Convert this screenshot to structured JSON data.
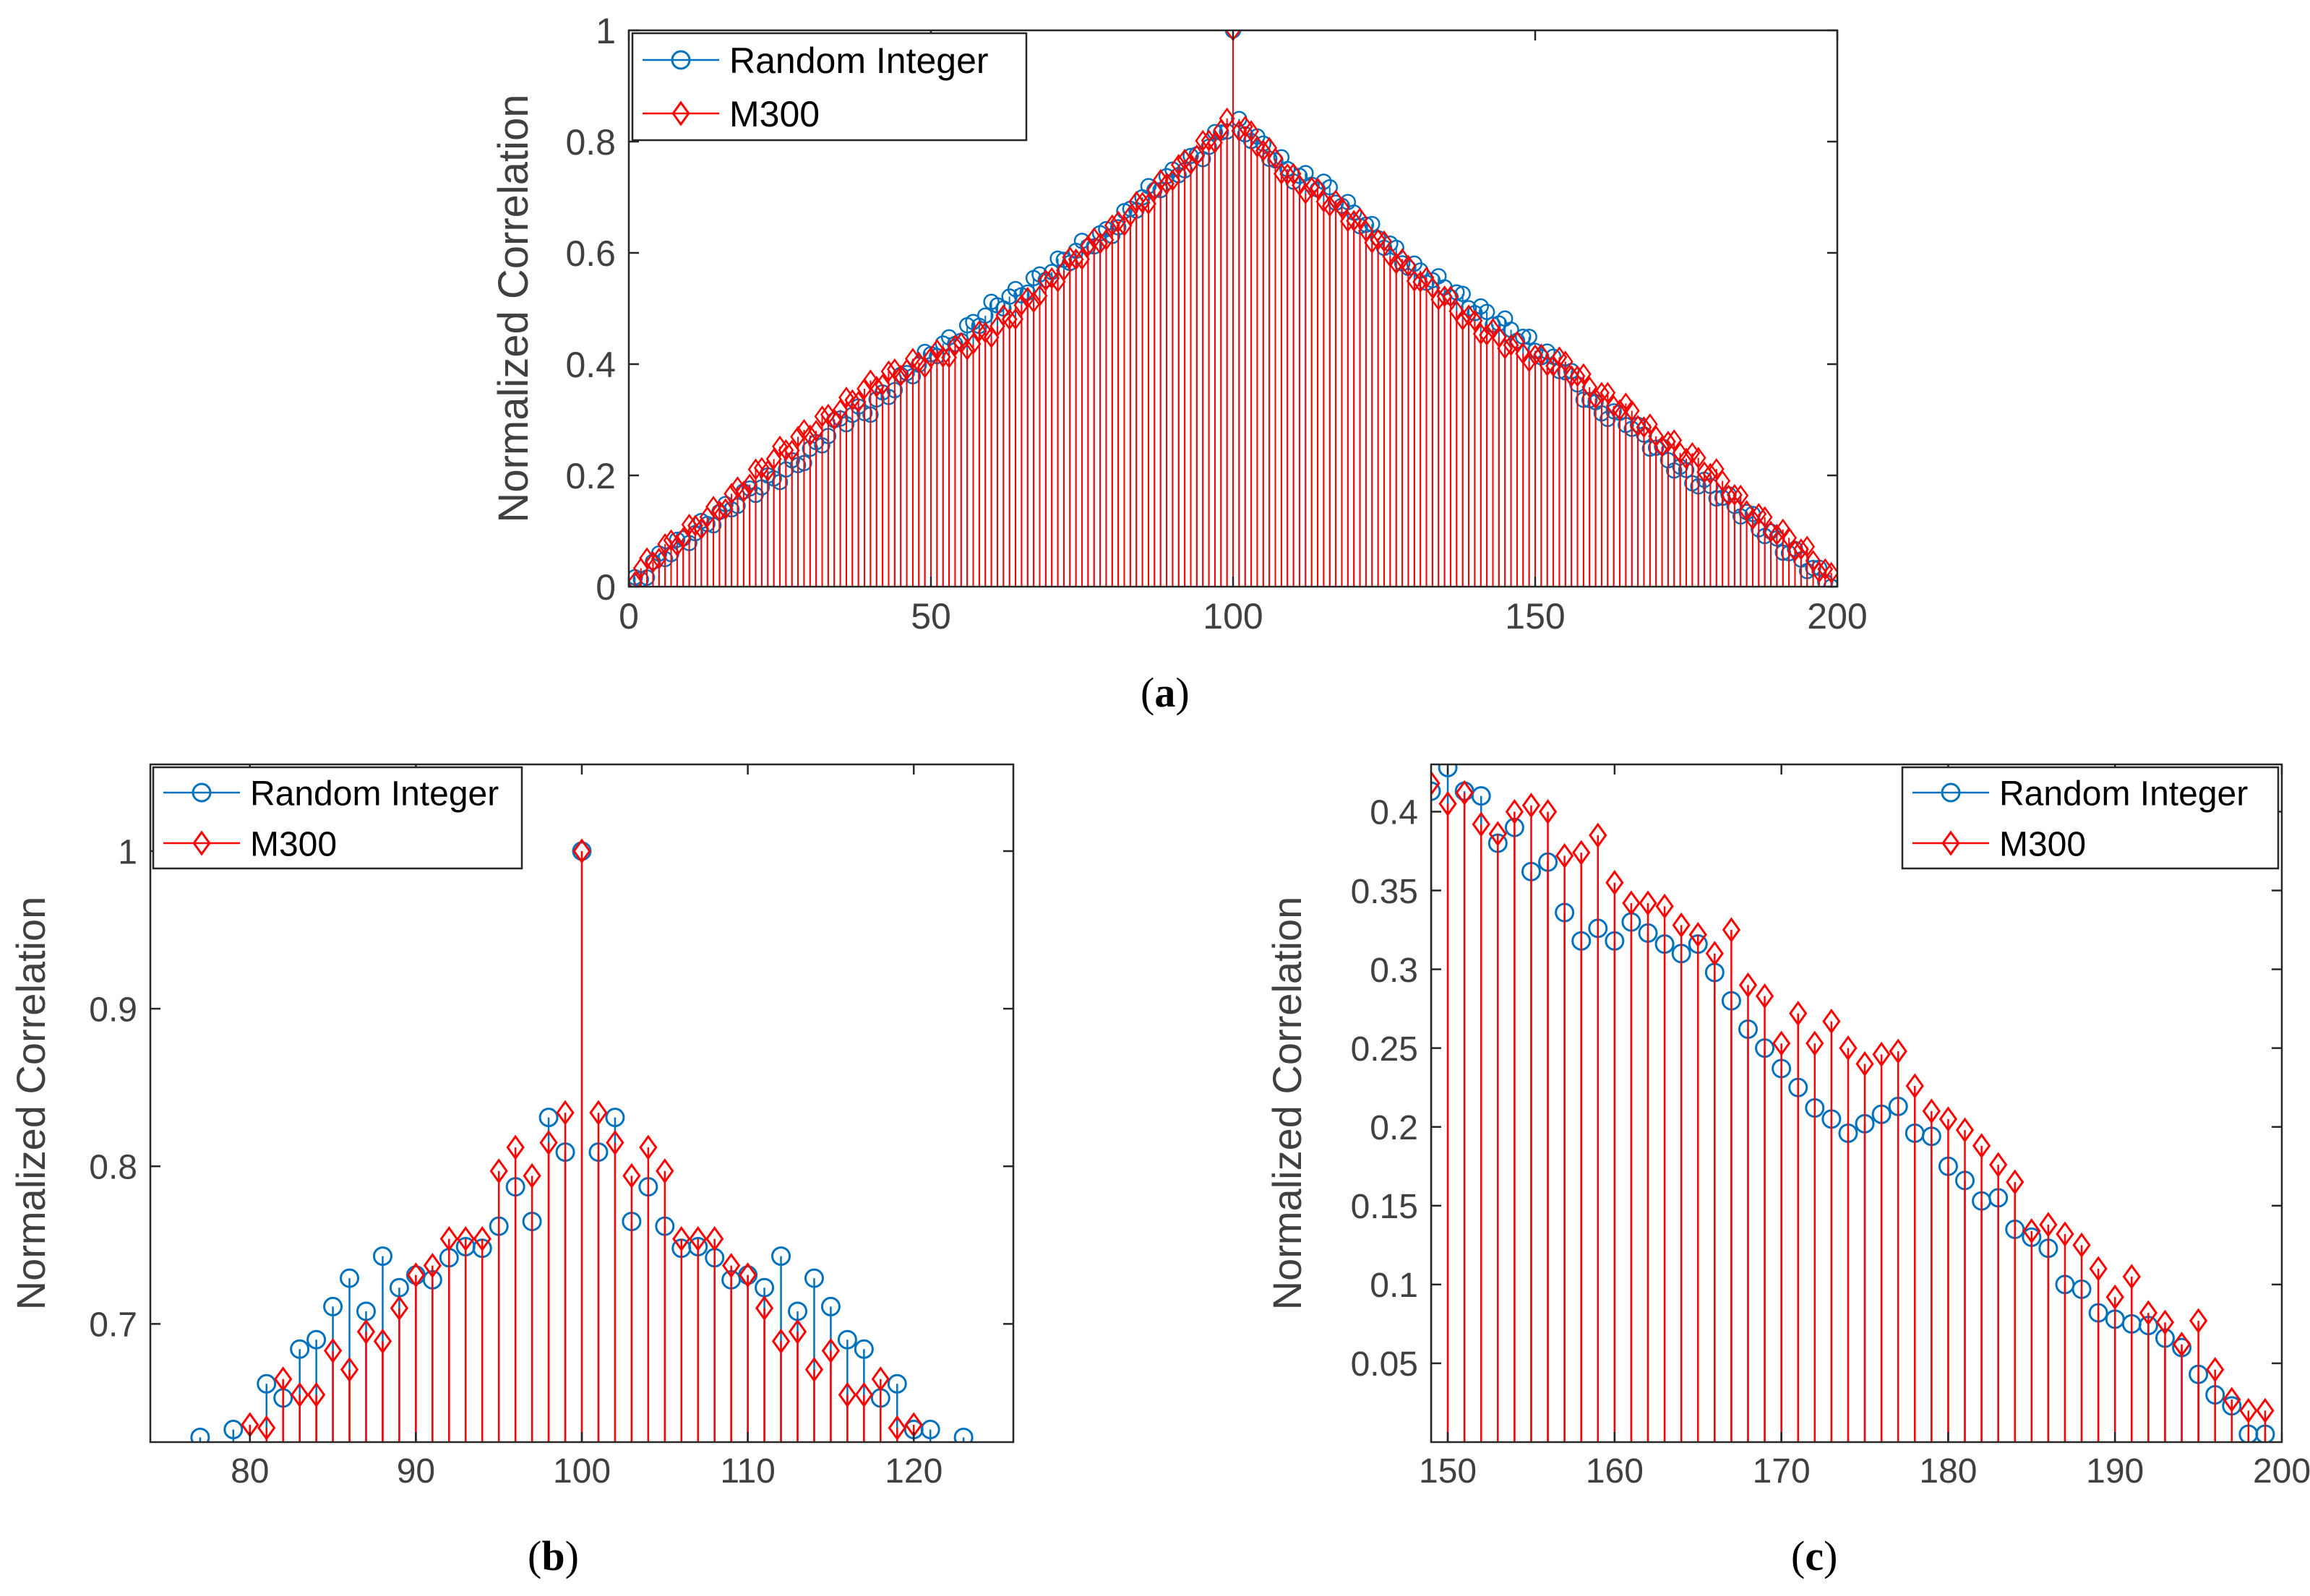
{
  "colors": {
    "random": "#0072BD",
    "m300": "#FF0000",
    "axis": "#262626",
    "tick_text": "#404040"
  },
  "legend_labels": {
    "random": "Random Integer",
    "m300": "M300"
  },
  "captions": {
    "a": "a",
    "b": "b",
    "c": "c"
  },
  "chart_data": [
    {
      "id": "a",
      "type": "stem",
      "ylabel": "Normalized Correlation",
      "xlim": [
        0,
        200
      ],
      "ylim": [
        0,
        1
      ],
      "xticks": [
        0,
        50,
        100,
        150,
        200
      ],
      "yticks": [
        0,
        0.2,
        0.4,
        0.6,
        0.8,
        1
      ],
      "legend_position": "top-left",
      "series": [
        {
          "name": "Random Integer",
          "x_start": 1,
          "x_end": 199,
          "y_anchors": [
            [
              1,
              0.005
            ],
            [
              5,
              0.05
            ],
            [
              10,
              0.09
            ],
            [
              15,
              0.13
            ],
            [
              20,
              0.17
            ],
            [
              25,
              0.2
            ],
            [
              30,
              0.24
            ],
            [
              35,
              0.3
            ],
            [
              40,
              0.32
            ],
            [
              45,
              0.37
            ],
            [
              50,
              0.42
            ],
            [
              55,
              0.45
            ],
            [
              60,
              0.5
            ],
            [
              65,
              0.53
            ],
            [
              70,
              0.57
            ],
            [
              75,
              0.61
            ],
            [
              80,
              0.64
            ],
            [
              85,
              0.7
            ],
            [
              90,
              0.74
            ],
            [
              95,
              0.78
            ],
            [
              99,
              0.83
            ],
            [
              100,
              1.0
            ],
            [
              101,
              0.83
            ],
            [
              105,
              0.79
            ],
            [
              110,
              0.74
            ],
            [
              115,
              0.72
            ],
            [
              120,
              0.67
            ],
            [
              125,
              0.62
            ],
            [
              130,
              0.57
            ],
            [
              135,
              0.54
            ],
            [
              140,
              0.5
            ],
            [
              145,
              0.47
            ],
            [
              150,
              0.43
            ],
            [
              155,
              0.39
            ],
            [
              160,
              0.32
            ],
            [
              165,
              0.3
            ],
            [
              170,
              0.25
            ],
            [
              175,
              0.2
            ],
            [
              180,
              0.17
            ],
            [
              185,
              0.13
            ],
            [
              190,
              0.08
            ],
            [
              195,
              0.04
            ],
            [
              199,
              0.005
            ]
          ]
        },
        {
          "name": "M300",
          "x_start": 1,
          "x_end": 199,
          "y_anchors": [
            [
              1,
              0.02
            ],
            [
              5,
              0.06
            ],
            [
              10,
              0.1
            ],
            [
              15,
              0.14
            ],
            [
              20,
              0.19
            ],
            [
              25,
              0.24
            ],
            [
              30,
              0.28
            ],
            [
              35,
              0.32
            ],
            [
              40,
              0.36
            ],
            [
              45,
              0.39
            ],
            [
              50,
              0.41
            ],
            [
              55,
              0.43
            ],
            [
              60,
              0.46
            ],
            [
              65,
              0.5
            ],
            [
              70,
              0.55
            ],
            [
              75,
              0.6
            ],
            [
              80,
              0.64
            ],
            [
              85,
              0.69
            ],
            [
              90,
              0.74
            ],
            [
              95,
              0.79
            ],
            [
              99,
              0.83
            ],
            [
              100,
              1.0
            ],
            [
              101,
              0.83
            ],
            [
              105,
              0.79
            ],
            [
              110,
              0.73
            ],
            [
              115,
              0.7
            ],
            [
              120,
              0.66
            ],
            [
              125,
              0.61
            ],
            [
              130,
              0.56
            ],
            [
              135,
              0.52
            ],
            [
              140,
              0.47
            ],
            [
              145,
              0.44
            ],
            [
              150,
              0.41
            ],
            [
              155,
              0.4
            ],
            [
              160,
              0.35
            ],
            [
              165,
              0.32
            ],
            [
              170,
              0.27
            ],
            [
              175,
              0.24
            ],
            [
              180,
              0.2
            ],
            [
              185,
              0.14
            ],
            [
              190,
              0.1
            ],
            [
              195,
              0.06
            ],
            [
              199,
              0.015
            ]
          ]
        }
      ]
    },
    {
      "id": "b",
      "type": "stem",
      "ylabel": "Normalized Correlation",
      "xlim": [
        74,
        126
      ],
      "ylim": [
        0.625,
        1.055
      ],
      "xticks": [
        80,
        90,
        100,
        110,
        120
      ],
      "yticks": [
        0.7,
        0.8,
        0.9,
        1
      ],
      "legend_position": "top-left",
      "series": [
        {
          "name": "Random Integer",
          "x": [
            77,
            79,
            81,
            82,
            83,
            84,
            85,
            86,
            87,
            88,
            89,
            90,
            91,
            92,
            93,
            94,
            95,
            96,
            97,
            98,
            99,
            100,
            101,
            102,
            103,
            104,
            105,
            106,
            107,
            108,
            109,
            110,
            111,
            112,
            113,
            114,
            115,
            116,
            117,
            118,
            119,
            120,
            121,
            123
          ],
          "y": [
            0.628,
            0.633,
            0.662,
            0.653,
            0.684,
            0.69,
            0.711,
            0.729,
            0.708,
            0.743,
            0.723,
            0.731,
            0.728,
            0.742,
            0.749,
            0.748,
            0.762,
            0.787,
            0.765,
            0.831,
            0.809,
            1.0,
            0.809,
            0.831,
            0.765,
            0.787,
            0.762,
            0.748,
            0.749,
            0.742,
            0.728,
            0.731,
            0.723,
            0.743,
            0.708,
            0.729,
            0.711,
            0.69,
            0.684,
            0.653,
            0.662,
            0.633,
            0.633,
            0.628
          ]
        },
        {
          "name": "M300",
          "x": [
            80,
            81,
            82,
            83,
            84,
            85,
            86,
            87,
            88,
            89,
            90,
            91,
            92,
            93,
            94,
            95,
            96,
            97,
            98,
            99,
            100,
            101,
            102,
            103,
            104,
            105,
            106,
            107,
            108,
            109,
            110,
            111,
            112,
            113,
            114,
            115,
            116,
            117,
            118,
            119,
            120
          ],
          "y": [
            0.636,
            0.634,
            0.665,
            0.655,
            0.655,
            0.683,
            0.671,
            0.695,
            0.689,
            0.71,
            0.731,
            0.737,
            0.754,
            0.754,
            0.754,
            0.797,
            0.812,
            0.794,
            0.815,
            0.834,
            1.0,
            0.834,
            0.815,
            0.794,
            0.812,
            0.797,
            0.754,
            0.754,
            0.754,
            0.737,
            0.731,
            0.71,
            0.689,
            0.695,
            0.671,
            0.683,
            0.655,
            0.655,
            0.665,
            0.634,
            0.636
          ]
        }
      ]
    },
    {
      "id": "c",
      "type": "stem",
      "ylabel": "Normalized Correlation",
      "xlim": [
        149,
        200
      ],
      "ylim": [
        0,
        0.43
      ],
      "xticks": [
        150,
        160,
        170,
        180,
        190,
        200
      ],
      "yticks": [
        0.05,
        0.1,
        0.15,
        0.2,
        0.25,
        0.3,
        0.35,
        0.4
      ],
      "legend_position": "top-right",
      "series": [
        {
          "name": "Random Integer",
          "x": [
            149,
            150,
            151,
            152,
            153,
            154,
            155,
            156,
            157,
            158,
            159,
            160,
            161,
            162,
            163,
            164,
            165,
            166,
            167,
            168,
            169,
            170,
            171,
            172,
            173,
            174,
            175,
            176,
            177,
            178,
            179,
            180,
            181,
            182,
            183,
            184,
            185,
            186,
            187,
            188,
            189,
            190,
            191,
            192,
            193,
            194,
            195,
            196,
            197,
            198,
            199
          ],
          "y": [
            0.413,
            0.428,
            0.413,
            0.41,
            0.38,
            0.39,
            0.362,
            0.368,
            0.336,
            0.318,
            0.326,
            0.318,
            0.33,
            0.323,
            0.316,
            0.31,
            0.316,
            0.298,
            0.28,
            0.262,
            0.25,
            0.237,
            0.225,
            0.212,
            0.205,
            0.196,
            0.202,
            0.208,
            0.213,
            0.196,
            0.194,
            0.175,
            0.166,
            0.153,
            0.155,
            0.135,
            0.13,
            0.123,
            0.1,
            0.097,
            0.082,
            0.078,
            0.075,
            0.074,
            0.066,
            0.06,
            0.043,
            0.03,
            0.023,
            0.005,
            0.005
          ]
        },
        {
          "name": "M300",
          "x": [
            149,
            150,
            151,
            152,
            153,
            154,
            155,
            156,
            157,
            158,
            159,
            160,
            161,
            162,
            163,
            164,
            165,
            166,
            167,
            168,
            169,
            170,
            171,
            172,
            173,
            174,
            175,
            176,
            177,
            178,
            179,
            180,
            181,
            182,
            183,
            184,
            185,
            186,
            187,
            188,
            189,
            190,
            191,
            192,
            193,
            194,
            195,
            196,
            197,
            198,
            199
          ],
          "y": [
            0.418,
            0.405,
            0.412,
            0.392,
            0.386,
            0.4,
            0.404,
            0.4,
            0.372,
            0.374,
            0.385,
            0.355,
            0.342,
            0.342,
            0.34,
            0.328,
            0.322,
            0.31,
            0.325,
            0.29,
            0.283,
            0.253,
            0.272,
            0.253,
            0.267,
            0.25,
            0.24,
            0.246,
            0.248,
            0.226,
            0.21,
            0.205,
            0.198,
            0.188,
            0.176,
            0.165,
            0.134,
            0.138,
            0.132,
            0.125,
            0.11,
            0.092,
            0.105,
            0.082,
            0.076,
            0.062,
            0.077,
            0.046,
            0.027,
            0.02,
            0.02
          ]
        }
      ]
    }
  ]
}
